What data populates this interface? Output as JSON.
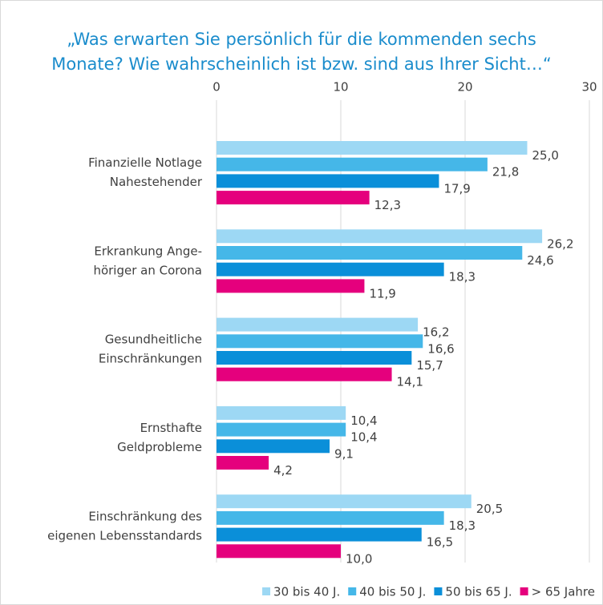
{
  "chart_data": {
    "type": "bar",
    "orientation": "horizontal",
    "title": [
      "„Was erwarten Sie persönlich für die kommenden sechs",
      "Monate? Wie wahrscheinlich ist bzw. sind aus Ihrer Sicht…“"
    ],
    "categories": [
      [
        "Finanzielle Notlage",
        "Nahestehender"
      ],
      [
        "Erkrankung Ange-",
        "höriger an Corona"
      ],
      [
        "Gesundheitliche",
        "Einschränkungen"
      ],
      [
        "Ernsthafte",
        "Geldprobleme"
      ],
      [
        "Einschränkung des",
        "eigenen Lebensstandards"
      ]
    ],
    "series": [
      {
        "name": "30 bis 40 J.",
        "color": "#9dd8f4",
        "values": [
          25.0,
          26.2,
          16.2,
          10.4,
          20.5
        ],
        "value_labels": [
          "25,0",
          "26,2",
          "16,2",
          "10,4",
          "20,5"
        ]
      },
      {
        "name": "40 bis 50 J.",
        "color": "#45b7e8",
        "values": [
          21.8,
          24.6,
          16.6,
          10.4,
          18.3
        ],
        "value_labels": [
          "21,8",
          "24,6",
          "16,6",
          "10,4",
          "18,3"
        ]
      },
      {
        "name": "50 bis 65 J.",
        "color": "#0a8fd9",
        "values": [
          17.9,
          18.3,
          15.7,
          9.1,
          16.5
        ],
        "value_labels": [
          "17,9",
          "18,3",
          "15,7",
          "9,1",
          "16,5"
        ]
      },
      {
        "name": "> 65 Jahre",
        "color": "#e5007d",
        "values": [
          12.3,
          11.9,
          14.1,
          4.2,
          10.0
        ],
        "value_labels": [
          "12,3",
          "11,9",
          "14,1",
          "4,2",
          "10,0"
        ]
      }
    ],
    "xlim": [
      0,
      30
    ],
    "xticks": [
      0,
      10,
      20,
      30
    ],
    "grid": true,
    "legend": "bottom-right"
  }
}
